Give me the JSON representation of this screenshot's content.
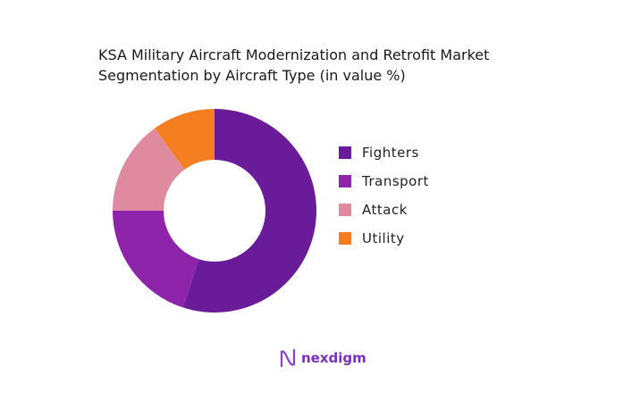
{
  "chart_data": {
    "type": "pie",
    "donut": true,
    "title": "KSA Military Aircraft Modernization and Retrofit Market Segmentation by Aircraft Type (in value %)",
    "title_lines": [
      "KSA Military Aircraft Modernization and Retrofit Market",
      "Segmentation by Aircraft Type (in value %)"
    ],
    "categories": [
      "Fighters",
      "Transport",
      "Attack",
      "Utility"
    ],
    "values": [
      55,
      20,
      15,
      10
    ],
    "colors": [
      "#6a1b9a",
      "#8e24aa",
      "#e08aa0",
      "#f57f20"
    ],
    "legend_position": "right"
  },
  "brand": {
    "name": "nexdigm",
    "color": "#7a2fbf"
  }
}
